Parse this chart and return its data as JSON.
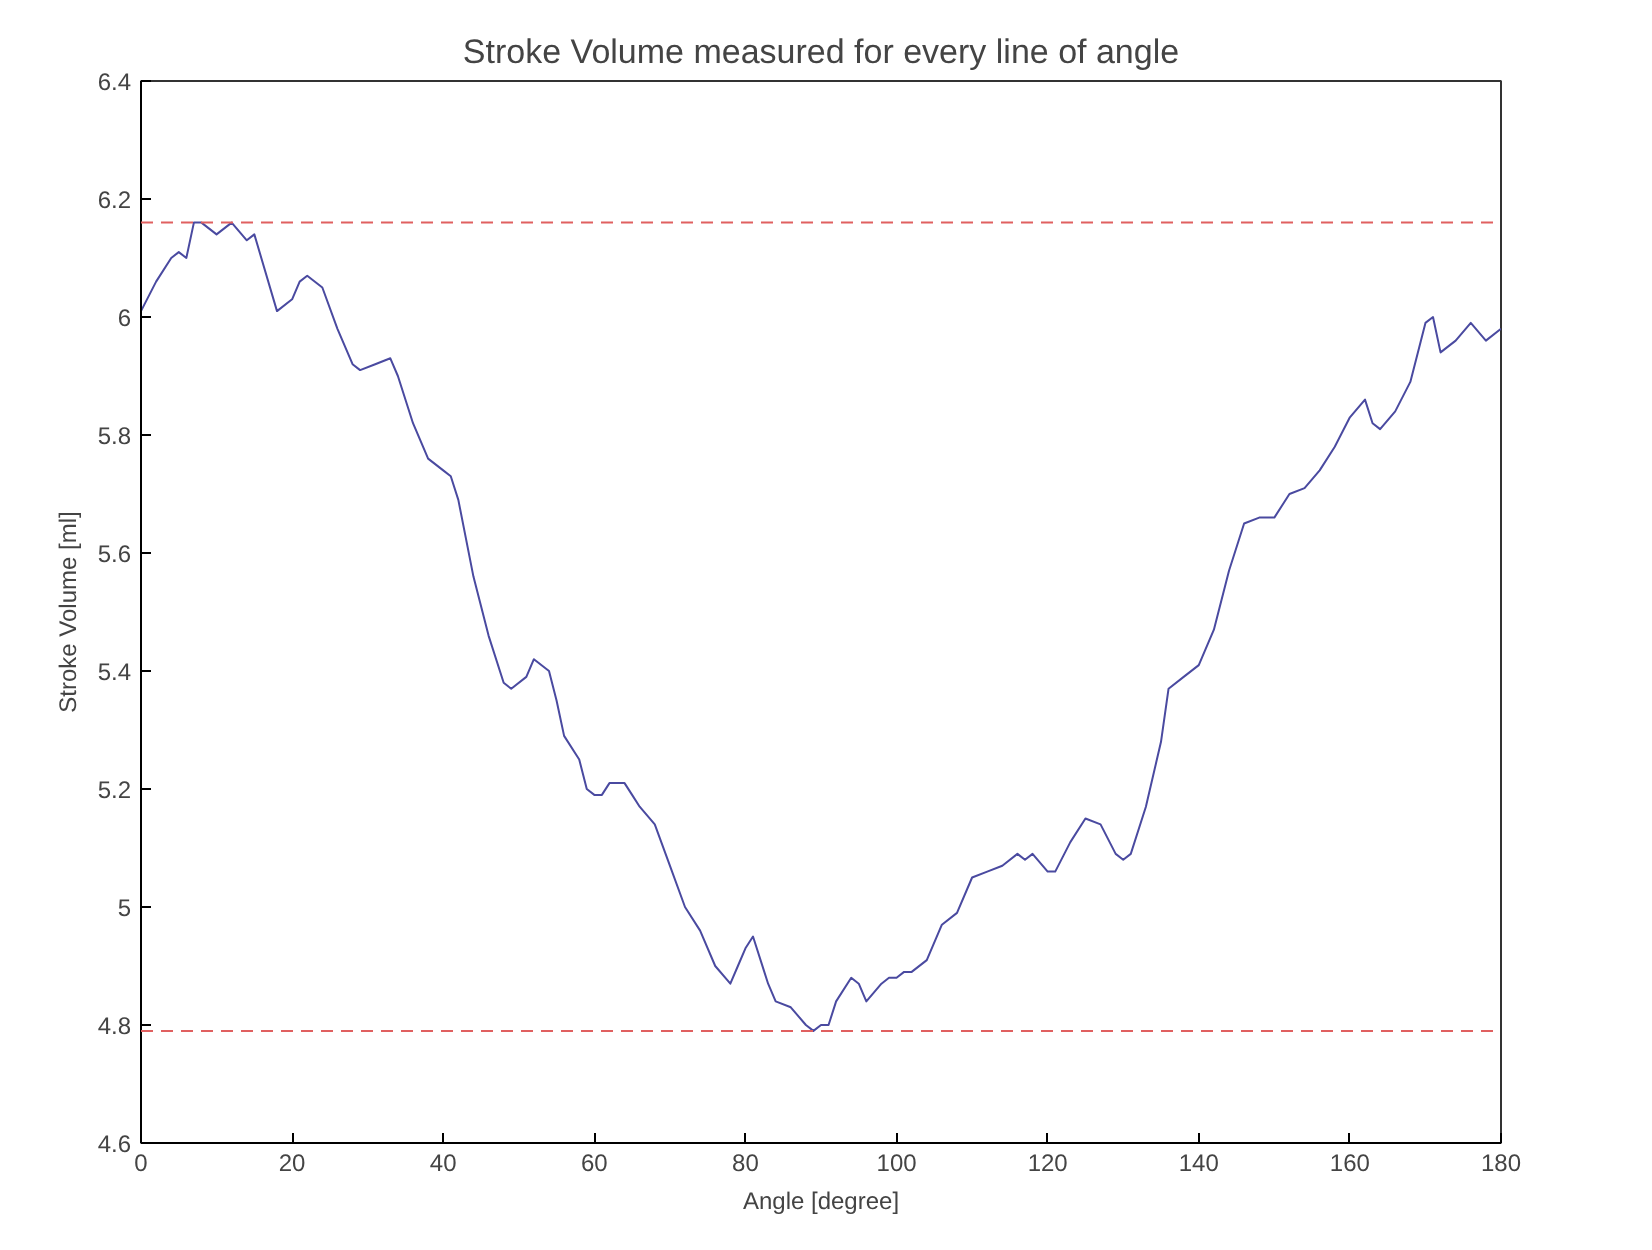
{
  "chart_data": {
    "type": "line",
    "title": "Stroke Volume measured for every line of angle",
    "xlabel": "Angle [degree]",
    "ylabel": "Stroke Volume [ml]",
    "x": [
      0,
      2,
      4,
      5,
      6,
      7,
      8,
      10,
      12,
      14,
      15,
      18,
      20,
      21,
      22,
      24,
      26,
      28,
      29,
      31,
      33,
      34,
      36,
      38,
      40,
      41,
      42,
      44,
      46,
      48,
      49,
      51,
      52,
      54,
      55,
      56,
      58,
      59,
      60,
      61,
      62,
      64,
      65,
      66,
      68,
      70,
      72,
      74,
      76,
      78,
      79,
      80,
      81,
      83,
      84,
      86,
      88,
      89,
      90,
      91,
      92,
      94,
      95,
      96,
      98,
      99,
      100,
      101,
      102,
      104,
      106,
      108,
      110,
      112,
      114,
      116,
      117,
      118,
      120,
      121,
      123,
      125,
      127,
      129,
      130,
      131,
      133,
      135,
      136,
      138,
      140,
      142,
      144,
      146,
      148,
      150,
      152,
      154,
      156,
      158,
      160,
      162,
      163,
      164,
      166,
      168,
      170,
      171,
      172,
      174,
      176,
      178,
      180
    ],
    "series": [
      {
        "color": "#4a4aa0",
        "values": [
          6.01,
          6.06,
          6.1,
          6.11,
          6.1,
          6.16,
          6.16,
          6.14,
          6.16,
          6.13,
          6.14,
          6.01,
          6.03,
          6.06,
          6.07,
          6.05,
          5.98,
          5.92,
          5.91,
          5.92,
          5.93,
          5.9,
          5.82,
          5.76,
          5.74,
          5.73,
          5.69,
          5.56,
          5.46,
          5.38,
          5.37,
          5.39,
          5.42,
          5.4,
          5.35,
          5.29,
          5.25,
          5.2,
          5.19,
          5.19,
          5.21,
          5.21,
          5.19,
          5.17,
          5.14,
          5.07,
          5.0,
          4.96,
          4.9,
          4.87,
          4.9,
          4.93,
          4.95,
          4.87,
          4.84,
          4.83,
          4.8,
          4.79,
          4.8,
          4.8,
          4.84,
          4.88,
          4.87,
          4.84,
          4.87,
          4.88,
          4.88,
          4.89,
          4.89,
          4.91,
          4.97,
          4.99,
          5.05,
          5.06,
          5.07,
          5.09,
          5.08,
          5.09,
          5.06,
          5.06,
          5.11,
          5.15,
          5.14,
          5.09,
          5.08,
          5.09,
          5.17,
          5.28,
          5.37,
          5.39,
          5.41,
          5.47,
          5.57,
          5.65,
          5.66,
          5.66,
          5.7,
          5.71,
          5.74,
          5.78,
          5.83,
          5.86,
          5.82,
          5.81,
          5.84,
          5.89,
          5.99,
          6.0,
          5.94,
          5.96,
          5.99,
          5.96,
          5.98
        ]
      }
    ],
    "xlim": [
      0,
      180
    ],
    "xticks": [
      0,
      20,
      40,
      60,
      80,
      100,
      120,
      140,
      160,
      180
    ],
    "ylim": [
      4.6,
      6.4
    ],
    "yticks": [
      4.6,
      4.8,
      5,
      5.2,
      5.4,
      5.6,
      5.8,
      6,
      6.2,
      6.4
    ],
    "ref_lines": [
      {
        "axis": "y",
        "value": 6.16,
        "color": "#e06060",
        "line_style": "dashed"
      },
      {
        "axis": "y",
        "value": 4.79,
        "color": "#e06060",
        "line_style": "dashed"
      }
    ],
    "grid": false,
    "marker": "none",
    "line_style": "solid"
  }
}
